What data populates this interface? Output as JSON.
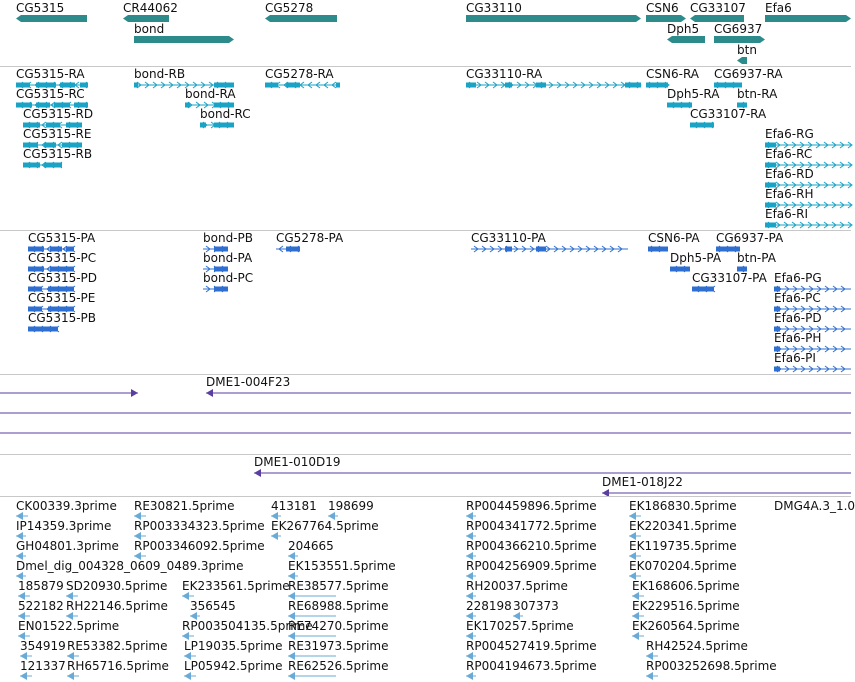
{
  "tracks": {
    "genes": [
      {
        "label": "CG5315",
        "y": 14,
        "label_x": 16
      },
      {
        "label": "CR44062",
        "y": 14,
        "label_x": 123
      },
      {
        "label": "bond",
        "y": 34,
        "label_x": 134
      },
      {
        "label": "CG5278",
        "y": 14,
        "label_x": 265
      },
      {
        "label": "CG33110",
        "y": 14,
        "label_x": 466
      },
      {
        "label": "CSN6",
        "y": 14,
        "label_x": 646
      },
      {
        "label": "CG33107",
        "y": 14,
        "label_x": 690
      },
      {
        "label": "Efa6",
        "y": 14,
        "label_x": 765
      },
      {
        "label": "Dph5",
        "y": 34,
        "label_x": 667
      },
      {
        "label": "CG6937",
        "y": 34,
        "label_x": 714
      },
      {
        "label": "btn",
        "y": 54,
        "label_x": 737
      }
    ],
    "transcripts_ra": [
      "CG5315-RA",
      "CG5315-RC",
      "CG5315-RD",
      "CG5315-RE",
      "CG5315-RB",
      "bond-RB",
      "bond-RA",
      "bond-RC",
      "CG5278-RA",
      "CG33110-RA",
      "CSN6-RA",
      "CG6937-RA",
      "Dph5-RA",
      "btn-RA",
      "CG33107-RA",
      "Efa6-RG",
      "Efa6-RC",
      "Efa6-RD",
      "Efa6-RH",
      "Efa6-RI"
    ],
    "proteins_pa": [
      "CG5315-PA",
      "CG5315-PC",
      "CG5315-PD",
      "CG5315-PE",
      "CG5315-PB",
      "bond-PB",
      "bond-PA",
      "bond-PC",
      "CG5278-PA",
      "CG33110-PA",
      "CSN6-PA",
      "CG6937-PA",
      "Dph5-PA",
      "btn-PA",
      "CG33107-PA",
      "Efa6-PG",
      "Efa6-PC",
      "Efa6-PD",
      "Efa6-PH",
      "Efa6-PI"
    ],
    "clones": [
      "DME1-004F23",
      "DME1-010D19",
      "DME1-018J22"
    ],
    "ests": [
      "CK00339.3prime",
      "RE30821.5prime",
      "413181",
      "198699",
      "RP004459896.5prime",
      "EK186830.5prime",
      "DMG4A.3_1.0",
      "IP14359.3prime",
      "RP003334323.5prime",
      "EK267764.5prime",
      "RP004341772.5prime",
      "EK220341.5prime",
      "GH04801.3prime",
      "RP003346092.5prime",
      "204665",
      "RP004366210.5prime",
      "EK119735.5prime",
      "Dmel_dig_004328_0609_0489.3prime",
      "EK153551.5prime",
      "RP004256909.5prime",
      "EK070204.5prime",
      "185879",
      "SD20930.5prime",
      "EK233561.5prime",
      "RE38577.5prime",
      "RH20037.5prime",
      "EK168606.5prime",
      "522182",
      "RH22146.5prime",
      "356545",
      "RE68988.5prime",
      "228198",
      "307373",
      "EK229516.5prime",
      "EN01522.5prime",
      "RP003504135.5prime",
      "RE74270.5prime",
      "EK170257.5prime",
      "EK260564.5prime",
      "354919",
      "RE53382.5prime",
      "LP19035.5prime",
      "RE31973.5prime",
      "RP004527419.5prime",
      "RH42524.5prime",
      "121337",
      "RH65716.5prime",
      "LP05942.5prime",
      "RE62526.5prime",
      "RP004194673.5prime",
      "RP003252698.5prime"
    ]
  },
  "colors": {
    "gene": "#2e8b8b",
    "transcript": "#1aa3c4",
    "protein": "#2f6fd0",
    "clone": "#5a3fa0",
    "est": "#6aaad6",
    "separator": "#c8c8c8"
  }
}
